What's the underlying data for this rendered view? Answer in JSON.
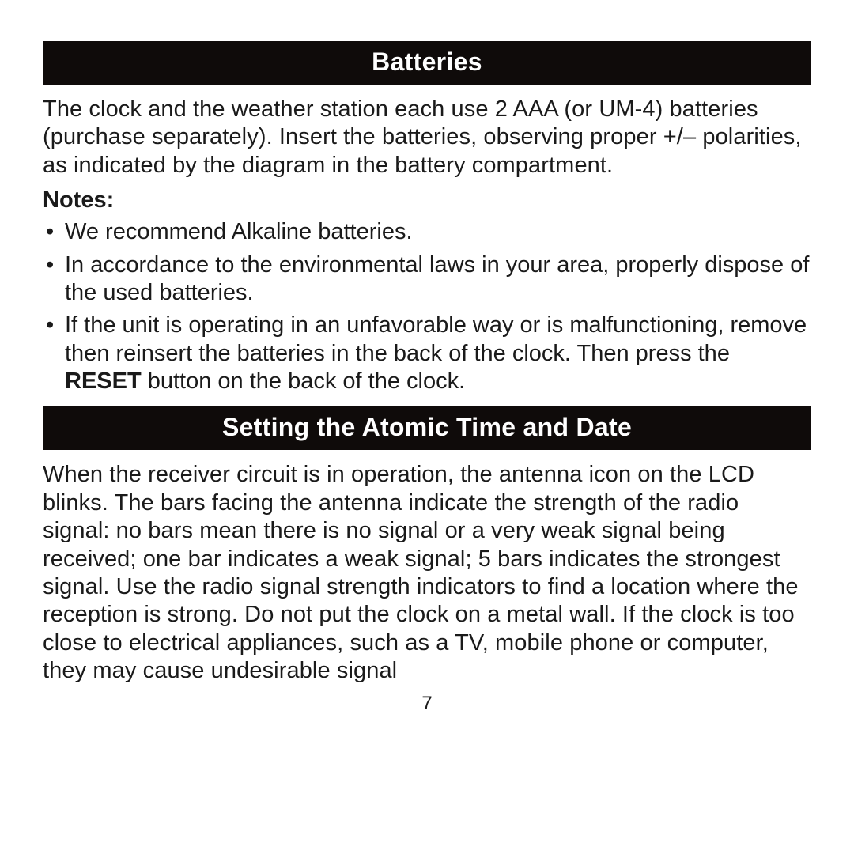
{
  "section1": {
    "title": "Batteries",
    "intro": "The clock and the weather station each use 2 AAA (or UM-4) batteries (purchase separately). Insert the batteries, observing proper +/– polarities, as indicated by the diagram in the battery compartment.",
    "notes_label": "Notes:",
    "notes": [
      "We recommend Alkaline batteries.",
      "In accordance to the environmental laws in your area, properly dispose of the used batteries.",
      {
        "pre": "If the unit is operating in an unfavorable way or is malfunctioning, remove then reinsert the batteries in the back of the clock. Then press the ",
        "bold": "RESET",
        "post": " button on the back of the clock."
      }
    ]
  },
  "section2": {
    "title": "Setting the Atomic Time and Date",
    "body": "When the receiver circuit is in operation, the antenna icon on the LCD blinks. The bars facing the antenna indicate the strength of the radio signal: no bars mean there is no signal or a very weak signal being received; one bar indicates a weak signal; 5 bars indicates the strongest signal. Use the radio signal strength indicators to find a location where the reception is strong. Do not put the clock on a metal wall. If the clock is too close to electrical appliances, such as a TV, mobile phone or computer, they may cause undesirable signal"
  },
  "page_number": "7"
}
